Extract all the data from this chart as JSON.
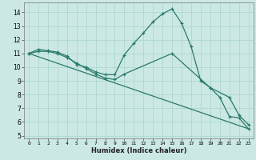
{
  "title": "",
  "xlabel": "Humidex (Indice chaleur)",
  "background_color": "#cbe8e4",
  "grid_color": "#a8d5cc",
  "line_color": "#2a7a6a",
  "xlim": [
    -0.5,
    23.5
  ],
  "ylim": [
    4.8,
    14.7
  ],
  "yticks": [
    5,
    6,
    7,
    8,
    9,
    10,
    11,
    12,
    13,
    14
  ],
  "xticks": [
    0,
    1,
    2,
    3,
    4,
    5,
    6,
    7,
    8,
    9,
    10,
    11,
    12,
    13,
    14,
    15,
    16,
    17,
    18,
    19,
    20,
    21,
    22,
    23
  ],
  "line1_x": [
    0,
    1,
    2,
    3,
    4,
    5,
    6,
    7,
    8,
    9,
    10,
    11,
    12,
    13,
    14,
    15,
    16,
    17,
    18,
    19,
    20,
    21,
    22,
    23
  ],
  "line1_y": [
    11.0,
    11.3,
    11.2,
    11.1,
    10.8,
    10.2,
    10.0,
    9.65,
    9.45,
    9.45,
    10.9,
    11.75,
    12.5,
    13.3,
    13.9,
    14.25,
    13.2,
    11.5,
    9.0,
    8.5,
    7.8,
    6.4,
    6.3,
    5.5
  ],
  "line2_x": [
    0,
    1,
    2,
    3,
    4,
    5,
    6,
    7,
    8,
    9,
    10,
    15,
    19,
    21,
    22,
    23
  ],
  "line2_y": [
    11.0,
    11.15,
    11.15,
    11.0,
    10.7,
    10.3,
    9.9,
    9.5,
    9.2,
    9.1,
    9.5,
    11.0,
    8.5,
    7.8,
    6.5,
    5.8
  ],
  "line3_x": [
    0,
    23
  ],
  "line3_y": [
    11.0,
    5.5
  ]
}
